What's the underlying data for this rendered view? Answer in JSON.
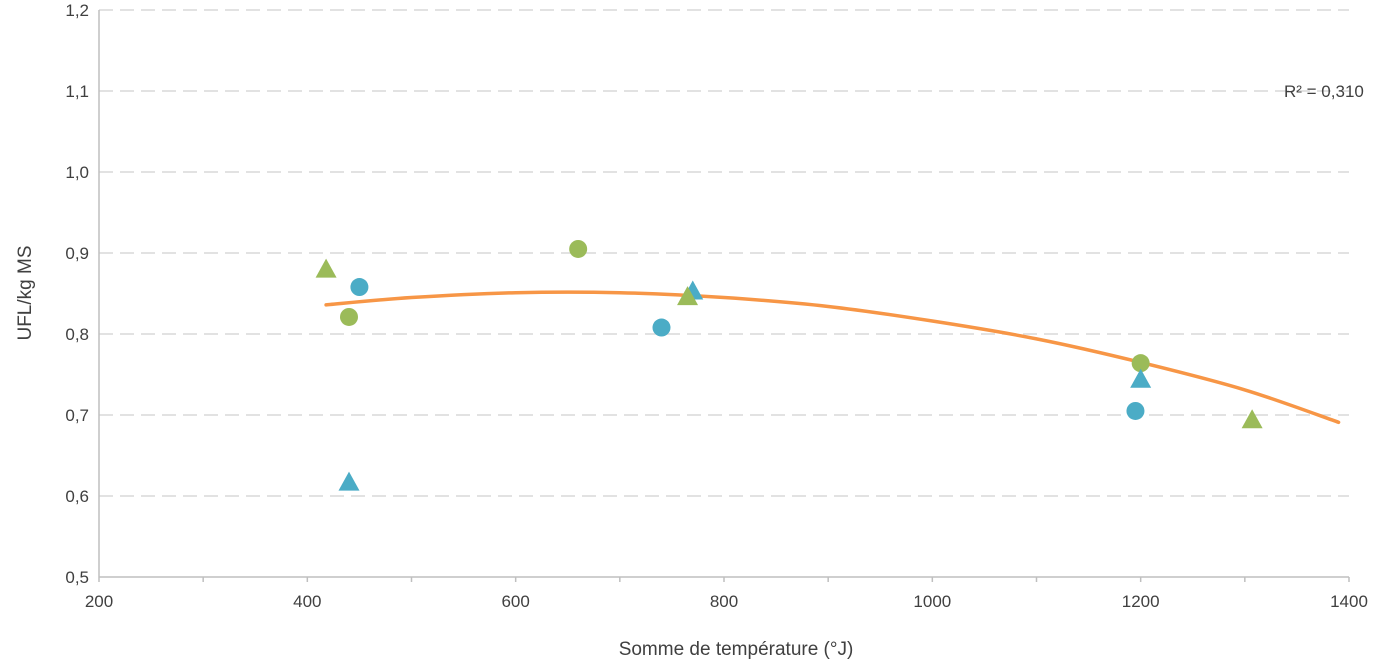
{
  "chart_data": {
    "type": "scatter",
    "xlabel": "Somme de température (°J)",
    "ylabel": "UFL/kg MS",
    "xlim": [
      200,
      1400
    ],
    "ylim": [
      0.5,
      1.2
    ],
    "x_ticks": [
      200,
      400,
      600,
      800,
      1000,
      1200,
      1400
    ],
    "x_tick_labels": [
      "200",
      "400",
      "600",
      "800",
      "1000",
      "1200",
      "1400"
    ],
    "y_ticks": [
      0.5,
      0.6,
      0.7,
      0.8,
      0.9,
      1.0,
      1.1,
      1.2
    ],
    "y_tick_labels": [
      "0,5",
      "0,6",
      "0,7",
      "0,8",
      "0,9",
      "1,0",
      "1,1",
      "1,2"
    ],
    "grid": "horizontal dashed",
    "series": [
      {
        "marker": "circle",
        "color": "#4bacc6",
        "points": [
          [
            450,
            0.858
          ],
          [
            740,
            0.808
          ],
          [
            1195,
            0.705
          ]
        ]
      },
      {
        "marker": "circle",
        "color": "#9bbb59",
        "points": [
          [
            440,
            0.821
          ],
          [
            660,
            0.905
          ],
          [
            1200,
            0.764
          ]
        ]
      },
      {
        "marker": "triangle",
        "color": "#4bacc6",
        "points": [
          [
            440,
            0.616
          ],
          [
            770,
            0.852
          ],
          [
            1200,
            0.743
          ]
        ]
      },
      {
        "marker": "triangle",
        "color": "#9bbb59",
        "points": [
          [
            418,
            0.879
          ],
          [
            765,
            0.845
          ],
          [
            1307,
            0.693
          ]
        ]
      }
    ],
    "trendline": {
      "type": "polynomial",
      "color": "#f79646",
      "x_range": [
        418,
        1390
      ],
      "samples": [
        [
          418,
          0.836
        ],
        [
          500,
          0.845
        ],
        [
          600,
          0.851
        ],
        [
          700,
          0.851
        ],
        [
          800,
          0.845
        ],
        [
          900,
          0.834
        ],
        [
          1000,
          0.816
        ],
        [
          1100,
          0.794
        ],
        [
          1200,
          0.765
        ],
        [
          1300,
          0.731
        ],
        [
          1390,
          0.691
        ]
      ],
      "label": "R² = 0,310"
    }
  }
}
